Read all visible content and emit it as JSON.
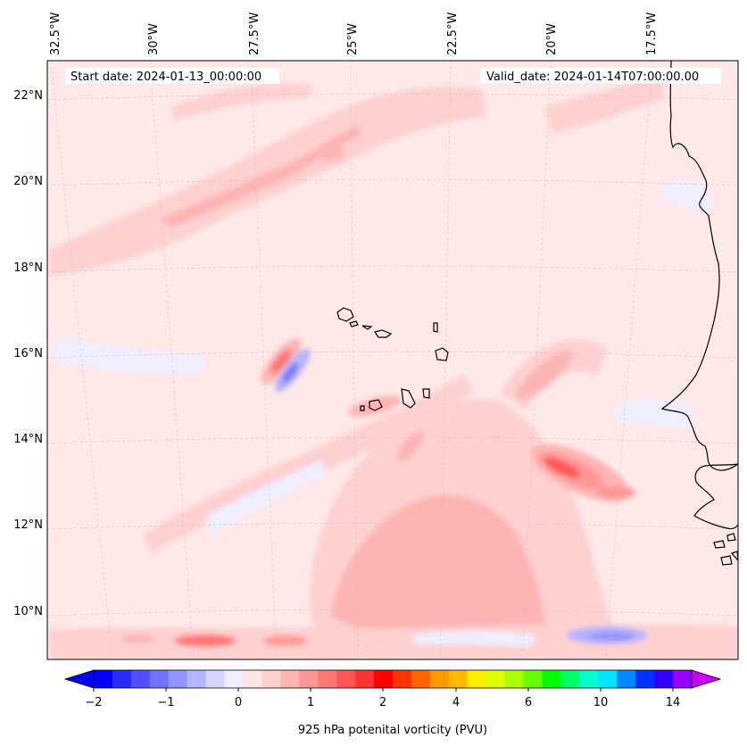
{
  "header": {
    "start_date": "Start date: 2024-01-13_00:00:00",
    "valid_date": "Valid_date: 2024-01-14T07:00:00.00"
  },
  "axes": {
    "lon_labels": [
      "32.5°W",
      "30°W",
      "27.5°W",
      "25°W",
      "22.5°W",
      "20°W",
      "17.5°W"
    ],
    "lat_labels": [
      "22°N",
      "20°N",
      "18°N",
      "16°N",
      "14°N",
      "12°N",
      "10°N"
    ]
  },
  "colorbar": {
    "label": "925 hPa potenital vorticity (PVU)",
    "ticks": [
      "−2",
      "−1",
      "0",
      "1",
      "2",
      "4",
      "6",
      "10",
      "14"
    ],
    "colors": [
      "#0000ff",
      "#2b2bff",
      "#4f4fff",
      "#7272ff",
      "#9494ff",
      "#b4b4ff",
      "#d4d4ff",
      "#eeeeff",
      "#ffe6e6",
      "#ffd0d0",
      "#ffb4b4",
      "#ff9696",
      "#ff7676",
      "#ff5656",
      "#ff3333",
      "#ff0000",
      "#ff3300",
      "#ff6600",
      "#ff9900",
      "#ffbb00",
      "#ffee00",
      "#ddff00",
      "#aaff00",
      "#66ff00",
      "#00ff00",
      "#00ff66",
      "#00ffcc",
      "#00e5ff",
      "#0088ff",
      "#0033ff",
      "#3300ff",
      "#9900ff"
    ],
    "under_color": "#0000ff",
    "over_color": "#cc00ff"
  },
  "map": {
    "background_color": "#ffe8e8",
    "gridlines": true
  }
}
